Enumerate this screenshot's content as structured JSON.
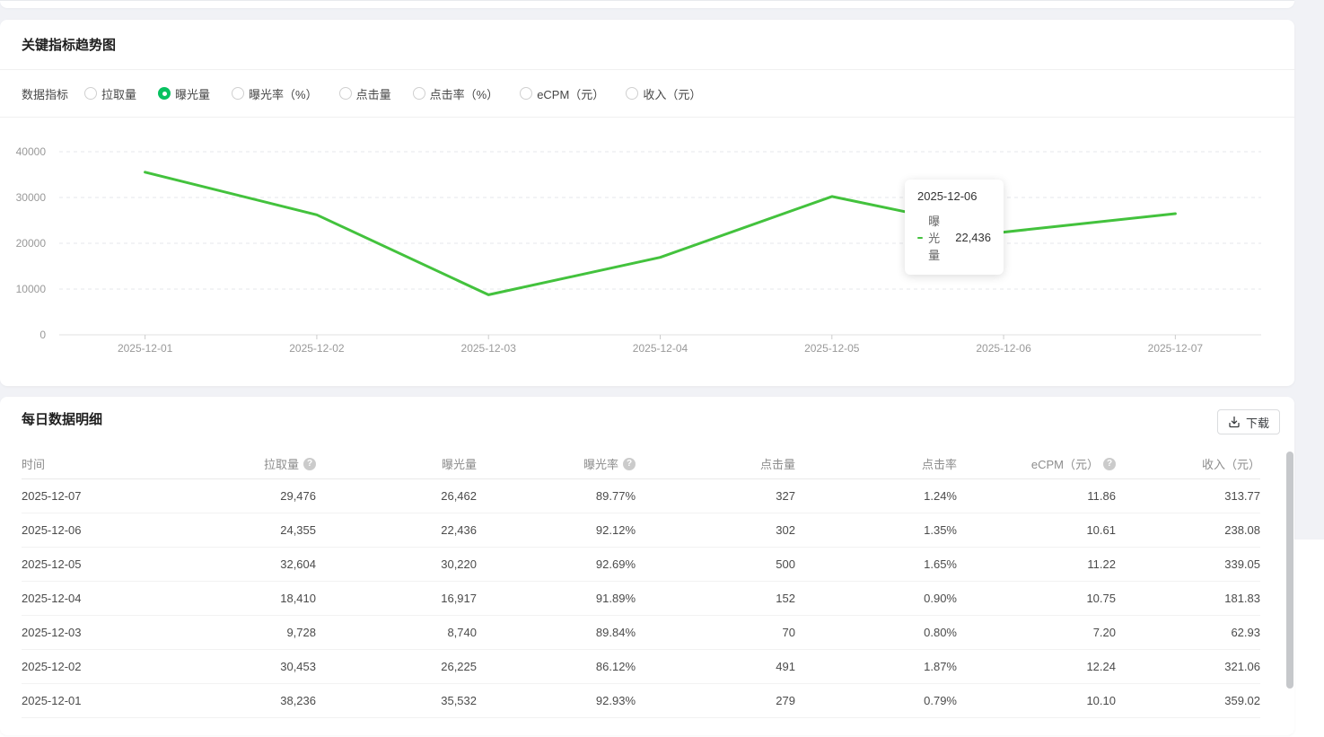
{
  "colors": {
    "accent_green": "#07c160",
    "line_green": "#43c23d",
    "page_bg": "#f1f2f6"
  },
  "trend_card": {
    "title": "关键指标趋势图",
    "metric_group_label": "数据指标",
    "metrics": [
      {
        "label": "拉取量",
        "selected": false
      },
      {
        "label": "曝光量",
        "selected": true
      },
      {
        "label": "曝光率（%）",
        "selected": false
      },
      {
        "label": "点击量",
        "selected": false
      },
      {
        "label": "点击率（%）",
        "selected": false
      },
      {
        "label": "eCPM（元）",
        "selected": false
      },
      {
        "label": "收入（元）",
        "selected": false
      }
    ],
    "tooltip": {
      "date": "2025-12-06",
      "series": "曝光量",
      "value": "22,436"
    }
  },
  "chart_data": {
    "type": "line",
    "x": [
      "2025-12-01",
      "2025-12-02",
      "2025-12-03",
      "2025-12-04",
      "2025-12-05",
      "2025-12-06",
      "2025-12-07"
    ],
    "series": [
      {
        "name": "曝光量",
        "color": "#43c23d",
        "values": [
          35532,
          26225,
          8740,
          16917,
          30220,
          22436,
          26462
        ]
      }
    ],
    "ylim": [
      0,
      40000
    ],
    "yticks": [
      0,
      10000,
      20000,
      30000,
      40000
    ],
    "grid": "horizontal-dashed",
    "legend": "none"
  },
  "table_card": {
    "title": "每日数据明细",
    "download_label": "下载",
    "columns": [
      {
        "label": "时间",
        "align": "left",
        "help": false
      },
      {
        "label": "拉取量",
        "align": "right",
        "help": true
      },
      {
        "label": "曝光量",
        "align": "right",
        "help": false
      },
      {
        "label": "曝光率",
        "align": "right",
        "help": true
      },
      {
        "label": "点击量",
        "align": "right",
        "help": false
      },
      {
        "label": "点击率",
        "align": "right",
        "help": false
      },
      {
        "label": "eCPM（元）",
        "align": "right",
        "help": true
      },
      {
        "label": "收入（元）",
        "align": "right",
        "help": false
      }
    ],
    "rows": [
      [
        "2025-12-07",
        "29,476",
        "26,462",
        "89.77%",
        "327",
        "1.24%",
        "11.86",
        "313.77"
      ],
      [
        "2025-12-06",
        "24,355",
        "22,436",
        "92.12%",
        "302",
        "1.35%",
        "10.61",
        "238.08"
      ],
      [
        "2025-12-05",
        "32,604",
        "30,220",
        "92.69%",
        "500",
        "1.65%",
        "11.22",
        "339.05"
      ],
      [
        "2025-12-04",
        "18,410",
        "16,917",
        "91.89%",
        "152",
        "0.90%",
        "10.75",
        "181.83"
      ],
      [
        "2025-12-03",
        "9,728",
        "8,740",
        "89.84%",
        "70",
        "0.80%",
        "7.20",
        "62.93"
      ],
      [
        "2025-12-02",
        "30,453",
        "26,225",
        "86.12%",
        "491",
        "1.87%",
        "12.24",
        "321.06"
      ],
      [
        "2025-12-01",
        "38,236",
        "35,532",
        "92.93%",
        "279",
        "0.79%",
        "10.10",
        "359.02"
      ]
    ]
  }
}
